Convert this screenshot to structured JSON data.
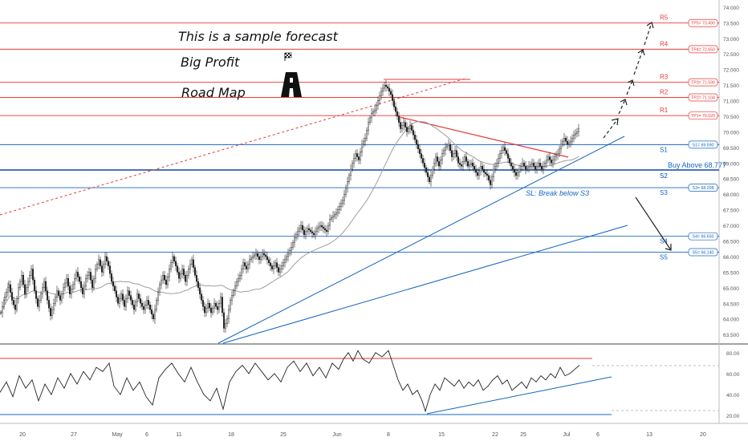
{
  "chart_data": {
    "type": "candlestick",
    "title": "",
    "annotations": {
      "forecast_note": "This is a sample forecast",
      "big_profit": "Big Profit",
      "road_map": "Road Map",
      "buy_above": "Buy Above 68.777",
      "stop_loss": "SL: Break below S3"
    },
    "price_axis": {
      "range": [
        63.35,
        74.1
      ],
      "ticks": [
        "63.500",
        "64.000",
        "64.500",
        "65.000",
        "65.500",
        "66.000",
        "66.500",
        "67.000",
        "67.500",
        "68.000",
        "68.500",
        "69.000",
        "69.500",
        "70.000",
        "70.500",
        "71.000",
        "71.500",
        "72.000",
        "72.500",
        "73.000",
        "73.500",
        "74.000"
      ]
    },
    "rsi_axis": {
      "range": [
        14,
        86
      ],
      "ticks": [
        "20.00",
        "40.00",
        "60.00",
        "80.00"
      ]
    },
    "date_axis": {
      "ticks": [
        "20",
        "27",
        "May",
        "6",
        "11",
        "18",
        "25",
        "Jun",
        "8",
        "15",
        "22",
        "25",
        "Jul",
        "6",
        "13",
        "20"
      ]
    },
    "levels": [
      {
        "label": "R5",
        "box": "TP5= 73.490",
        "value": 73.49,
        "color": "#e53935"
      },
      {
        "label": "R4",
        "box": "TP4= 72.650",
        "value": 72.65,
        "color": "#e53935"
      },
      {
        "label": "R3",
        "box": "TP3= 71.590",
        "value": 71.59,
        "color": "#e53935"
      },
      {
        "label": "R2",
        "box": "TP2= 71.104",
        "value": 71.104,
        "color": "#e53935"
      },
      {
        "label": "R1",
        "box": "TP1= 70.520",
        "value": 70.52,
        "color": "#e53935"
      },
      {
        "label": "S1",
        "box": "S1= 69.590",
        "value": 69.59,
        "color": "#1565c0"
      },
      {
        "label": "S2",
        "box": "",
        "value": 68.777,
        "color": "#0d47a1"
      },
      {
        "label": "S3",
        "box": "S3= 68.208",
        "value": 68.208,
        "color": "#1565c0"
      },
      {
        "label": "S4",
        "box": "S4= 66.650",
        "value": 66.65,
        "color": "#1565c0"
      },
      {
        "label": "S5",
        "box": "S5= 66.140",
        "value": 66.14,
        "color": "#1565c0"
      }
    ],
    "price_path": [
      [
        0,
        64.2
      ],
      [
        5,
        64.7
      ],
      [
        10,
        65.1
      ],
      [
        14,
        64.6
      ],
      [
        18,
        64.3
      ],
      [
        22,
        65.0
      ],
      [
        26,
        65.4
      ],
      [
        30,
        64.8
      ],
      [
        34,
        65.2
      ],
      [
        38,
        65.6
      ],
      [
        42,
        64.9
      ],
      [
        46,
        64.4
      ],
      [
        50,
        64.8
      ],
      [
        54,
        65.2
      ],
      [
        58,
        64.6
      ],
      [
        62,
        64.1
      ],
      [
        66,
        64.5
      ],
      [
        70,
        64.9
      ],
      [
        74,
        64.6
      ],
      [
        78,
        65.0
      ],
      [
        82,
        65.3
      ],
      [
        86,
        64.8
      ],
      [
        90,
        65.1
      ],
      [
        94,
        65.5
      ],
      [
        98,
        65.2
      ],
      [
        102,
        64.8
      ],
      [
        106,
        65.3
      ],
      [
        110,
        65.5
      ],
      [
        114,
        65.0
      ],
      [
        118,
        65.6
      ],
      [
        122,
        65.9
      ],
      [
        126,
        65.5
      ],
      [
        130,
        66.0
      ],
      [
        134,
        65.7
      ],
      [
        138,
        65.2
      ],
      [
        142,
        64.9
      ],
      [
        146,
        64.5
      ],
      [
        150,
        64.8
      ],
      [
        154,
        64.4
      ],
      [
        158,
        64.9
      ],
      [
        162,
        64.6
      ],
      [
        166,
        64.3
      ],
      [
        170,
        64.8
      ],
      [
        174,
        64.5
      ],
      [
        178,
        64.3
      ],
      [
        182,
        64.6
      ],
      [
        186,
        64.3
      ],
      [
        190,
        64.0
      ],
      [
        194,
        64.6
      ],
      [
        198,
        65.1
      ],
      [
        202,
        65.4
      ],
      [
        206,
        65.1
      ],
      [
        210,
        65.6
      ],
      [
        214,
        66.0
      ],
      [
        218,
        65.7
      ],
      [
        222,
        65.3
      ],
      [
        226,
        65.6
      ],
      [
        230,
        65.2
      ],
      [
        234,
        65.6
      ],
      [
        238,
        65.9
      ],
      [
        242,
        65.4
      ],
      [
        246,
        65.0
      ],
      [
        250,
        64.6
      ],
      [
        254,
        64.2
      ],
      [
        258,
        64.5
      ],
      [
        262,
        64.2
      ],
      [
        266,
        64.5
      ],
      [
        270,
        64.3
      ],
      [
        274,
        64.7
      ],
      [
        278,
        63.7
      ],
      [
        282,
        64.0
      ],
      [
        286,
        64.6
      ],
      [
        290,
        64.9
      ],
      [
        294,
        65.2
      ],
      [
        298,
        65.4
      ],
      [
        302,
        65.8
      ],
      [
        306,
        65.6
      ],
      [
        310,
        65.9
      ],
      [
        314,
        66.0
      ],
      [
        318,
        66.1
      ],
      [
        322,
        65.9
      ],
      [
        326,
        66.1
      ],
      [
        330,
        66.0
      ],
      [
        334,
        65.8
      ],
      [
        338,
        65.6
      ],
      [
        342,
        65.8
      ],
      [
        346,
        65.5
      ],
      [
        350,
        65.7
      ],
      [
        354,
        65.9
      ],
      [
        358,
        66.1
      ],
      [
        362,
        66.3
      ],
      [
        366,
        66.6
      ],
      [
        370,
        66.8
      ],
      [
        374,
        67.0
      ],
      [
        378,
        66.7
      ],
      [
        382,
        66.9
      ],
      [
        386,
        66.8
      ],
      [
        390,
        66.7
      ],
      [
        394,
        66.9
      ],
      [
        398,
        67.0
      ],
      [
        402,
        66.9
      ],
      [
        406,
        66.8
      ],
      [
        410,
        67.2
      ],
      [
        414,
        67.3
      ],
      [
        418,
        67.4
      ],
      [
        422,
        67.6
      ],
      [
        426,
        67.8
      ],
      [
        430,
        68.2
      ],
      [
        434,
        68.6
      ],
      [
        438,
        69.0
      ],
      [
        442,
        69.3
      ],
      [
        446,
        69.1
      ],
      [
        450,
        69.6
      ],
      [
        454,
        69.8
      ],
      [
        458,
        70.3
      ],
      [
        462,
        70.6
      ],
      [
        466,
        70.7
      ],
      [
        470,
        71.0
      ],
      [
        474,
        71.3
      ],
      [
        478,
        71.5
      ],
      [
        482,
        71.4
      ],
      [
        486,
        71.2
      ],
      [
        490,
        70.8
      ],
      [
        494,
        70.5
      ],
      [
        498,
        70.1
      ],
      [
        502,
        70.3
      ],
      [
        506,
        70.0
      ],
      [
        510,
        70.2
      ],
      [
        514,
        69.9
      ],
      [
        518,
        69.6
      ],
      [
        522,
        69.3
      ],
      [
        526,
        69.0
      ],
      [
        530,
        68.7
      ],
      [
        534,
        68.4
      ],
      [
        538,
        68.8
      ],
      [
        542,
        69.2
      ],
      [
        546,
        68.9
      ],
      [
        550,
        69.3
      ],
      [
        554,
        69.5
      ],
      [
        558,
        69.6
      ],
      [
        562,
        69.2
      ],
      [
        566,
        69.4
      ],
      [
        570,
        69.0
      ],
      [
        574,
        68.9
      ],
      [
        578,
        69.2
      ],
      [
        582,
        68.9
      ],
      [
        586,
        69.0
      ],
      [
        590,
        68.8
      ],
      [
        594,
        68.6
      ],
      [
        598,
        68.9
      ],
      [
        602,
        68.7
      ],
      [
        606,
        68.6
      ],
      [
        610,
        68.3
      ],
      [
        614,
        68.8
      ],
      [
        618,
        69.0
      ],
      [
        622,
        69.3
      ],
      [
        626,
        69.5
      ],
      [
        630,
        69.3
      ],
      [
        634,
        69.0
      ],
      [
        638,
        68.8
      ],
      [
        642,
        68.6
      ],
      [
        646,
        68.8
      ],
      [
        650,
        69.0
      ],
      [
        654,
        68.8
      ],
      [
        658,
        68.9
      ],
      [
        662,
        69.0
      ],
      [
        666,
        68.8
      ],
      [
        670,
        69.0
      ],
      [
        674,
        68.8
      ],
      [
        678,
        69.0
      ],
      [
        682,
        69.2
      ],
      [
        686,
        69.0
      ],
      [
        690,
        69.2
      ],
      [
        694,
        69.3
      ],
      [
        698,
        69.6
      ],
      [
        702,
        69.8
      ],
      [
        706,
        69.6
      ],
      [
        710,
        69.7
      ],
      [
        714,
        69.9
      ],
      [
        718,
        70.0
      ],
      [
        722,
        70.2
      ]
    ],
    "rsi_path": [
      [
        0,
        42
      ],
      [
        8,
        52
      ],
      [
        16,
        38
      ],
      [
        24,
        58
      ],
      [
        32,
        46
      ],
      [
        40,
        54
      ],
      [
        48,
        34
      ],
      [
        56,
        50
      ],
      [
        64,
        40
      ],
      [
        72,
        56
      ],
      [
        80,
        46
      ],
      [
        88,
        60
      ],
      [
        96,
        50
      ],
      [
        104,
        62
      ],
      [
        112,
        54
      ],
      [
        120,
        66
      ],
      [
        128,
        62
      ],
      [
        136,
        70
      ],
      [
        142,
        48
      ],
      [
        150,
        40
      ],
      [
        158,
        56
      ],
      [
        166,
        44
      ],
      [
        174,
        52
      ],
      [
        182,
        38
      ],
      [
        190,
        30
      ],
      [
        198,
        56
      ],
      [
        206,
        64
      ],
      [
        214,
        70
      ],
      [
        222,
        60
      ],
      [
        230,
        52
      ],
      [
        238,
        66
      ],
      [
        246,
        52
      ],
      [
        254,
        40
      ],
      [
        262,
        34
      ],
      [
        270,
        46
      ],
      [
        278,
        26
      ],
      [
        286,
        52
      ],
      [
        294,
        62
      ],
      [
        302,
        68
      ],
      [
        310,
        60
      ],
      [
        318,
        70
      ],
      [
        326,
        62
      ],
      [
        334,
        54
      ],
      [
        342,
        60
      ],
      [
        350,
        52
      ],
      [
        358,
        66
      ],
      [
        366,
        72
      ],
      [
        374,
        62
      ],
      [
        382,
        70
      ],
      [
        390,
        58
      ],
      [
        398,
        66
      ],
      [
        406,
        56
      ],
      [
        414,
        70
      ],
      [
        422,
        64
      ],
      [
        428,
        74
      ],
      [
        434,
        80
      ],
      [
        440,
        72
      ],
      [
        446,
        82
      ],
      [
        452,
        74
      ],
      [
        460,
        70
      ],
      [
        468,
        80
      ],
      [
        476,
        76
      ],
      [
        484,
        82
      ],
      [
        490,
        68
      ],
      [
        496,
        54
      ],
      [
        502,
        44
      ],
      [
        508,
        50
      ],
      [
        514,
        40
      ],
      [
        520,
        44
      ],
      [
        526,
        34
      ],
      [
        530,
        24
      ],
      [
        536,
        40
      ],
      [
        542,
        50
      ],
      [
        548,
        44
      ],
      [
        554,
        56
      ],
      [
        560,
        52
      ],
      [
        566,
        48
      ],
      [
        572,
        54
      ],
      [
        578,
        46
      ],
      [
        584,
        52
      ],
      [
        590,
        48
      ],
      [
        596,
        54
      ],
      [
        602,
        44
      ],
      [
        608,
        48
      ],
      [
        614,
        54
      ],
      [
        620,
        58
      ],
      [
        626,
        50
      ],
      [
        632,
        54
      ],
      [
        638,
        44
      ],
      [
        644,
        48
      ],
      [
        650,
        52
      ],
      [
        656,
        46
      ],
      [
        662,
        56
      ],
      [
        668,
        52
      ],
      [
        674,
        58
      ],
      [
        680,
        54
      ],
      [
        686,
        60
      ],
      [
        692,
        56
      ],
      [
        698,
        66
      ],
      [
        704,
        58
      ],
      [
        710,
        60
      ],
      [
        716,
        64
      ],
      [
        722,
        68
      ]
    ]
  }
}
